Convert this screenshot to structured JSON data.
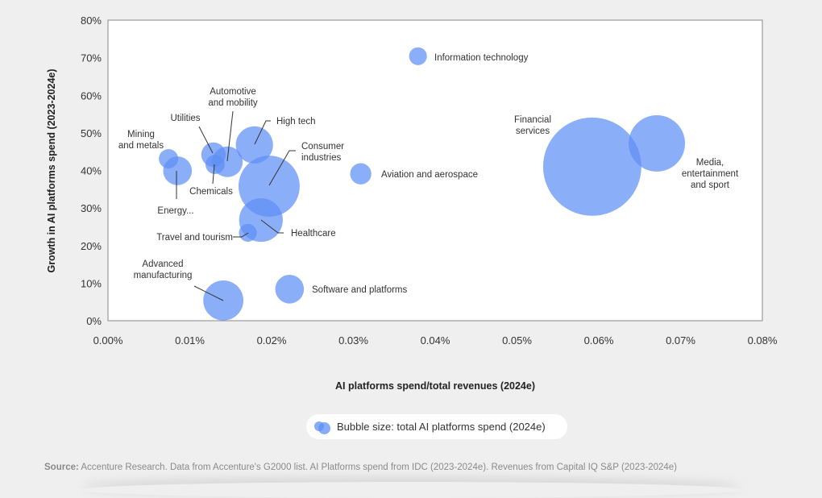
{
  "chart_data": {
    "type": "scatter",
    "subtype": "bubble",
    "xlabel": "AI platforms spend/total revenues (2024e)",
    "ylabel": "Growth in AI platforms spend (2023-2024e)",
    "xlim": [
      0,
      0.08
    ],
    "ylim": [
      0,
      80
    ],
    "x_unit": "%",
    "y_unit": "%",
    "x_ticks": [
      "0.00%",
      "0.01%",
      "0.02%",
      "0.03%",
      "0.04%",
      "0.05%",
      "0.06%",
      "0.07%",
      "0.08%"
    ],
    "y_ticks": [
      "0%",
      "10%",
      "20%",
      "30%",
      "40%",
      "50%",
      "60%",
      "70%",
      "80%"
    ],
    "grid": false,
    "bubble_color": "#5e8ff5",
    "points": [
      {
        "label": "Mining and metals",
        "x": 0.0074,
        "y": 43.1,
        "size": 1.0
      },
      {
        "label": "Energy...",
        "x": 0.0085,
        "y": 39.9,
        "size": 2.2
      },
      {
        "label": "Utilities",
        "x": 0.0129,
        "y": 44.2,
        "size": 1.6
      },
      {
        "label": "Chemicals",
        "x": 0.0131,
        "y": 41.6,
        "size": 1.0
      },
      {
        "label": "Automotive and mobility",
        "x": 0.0146,
        "y": 42.3,
        "size": 2.5
      },
      {
        "label": "High tech",
        "x": 0.0179,
        "y": 46.8,
        "size": 3.7
      },
      {
        "label": "Consumer industries",
        "x": 0.0197,
        "y": 35.8,
        "size": 10.0
      },
      {
        "label": "Healthcare",
        "x": 0.0187,
        "y": 26.8,
        "size": 5.1
      },
      {
        "label": "Travel and tourism",
        "x": 0.0171,
        "y": 23.4,
        "size": 0.85
      },
      {
        "label": "Advanced manufacturing",
        "x": 0.0141,
        "y": 5.4,
        "size": 4.3
      },
      {
        "label": "Software and platforms",
        "x": 0.0222,
        "y": 8.4,
        "size": 2.2
      },
      {
        "label": "Aviation and aerospace",
        "x": 0.0309,
        "y": 39.1,
        "size": 1.2
      },
      {
        "label": "Information technology",
        "x": 0.0379,
        "y": 70.4,
        "size": 0.85
      },
      {
        "label": "Financial services",
        "x": 0.0592,
        "y": 41.0,
        "size": 25.8
      },
      {
        "label": "Media, entertainment and sport",
        "x": 0.0671,
        "y": 47.2,
        "size": 8.5
      }
    ],
    "legend": {
      "text": "Bubble size: total AI platforms spend (2024e)",
      "placement": "bottom"
    }
  },
  "source": {
    "prefix": "Source:",
    "text": "Accenture Research. Data from Accenture's G2000 list. AI Platforms spend from IDC (2023-2024e). Revenues from Capital IQ S&P (2023-2024e)"
  }
}
